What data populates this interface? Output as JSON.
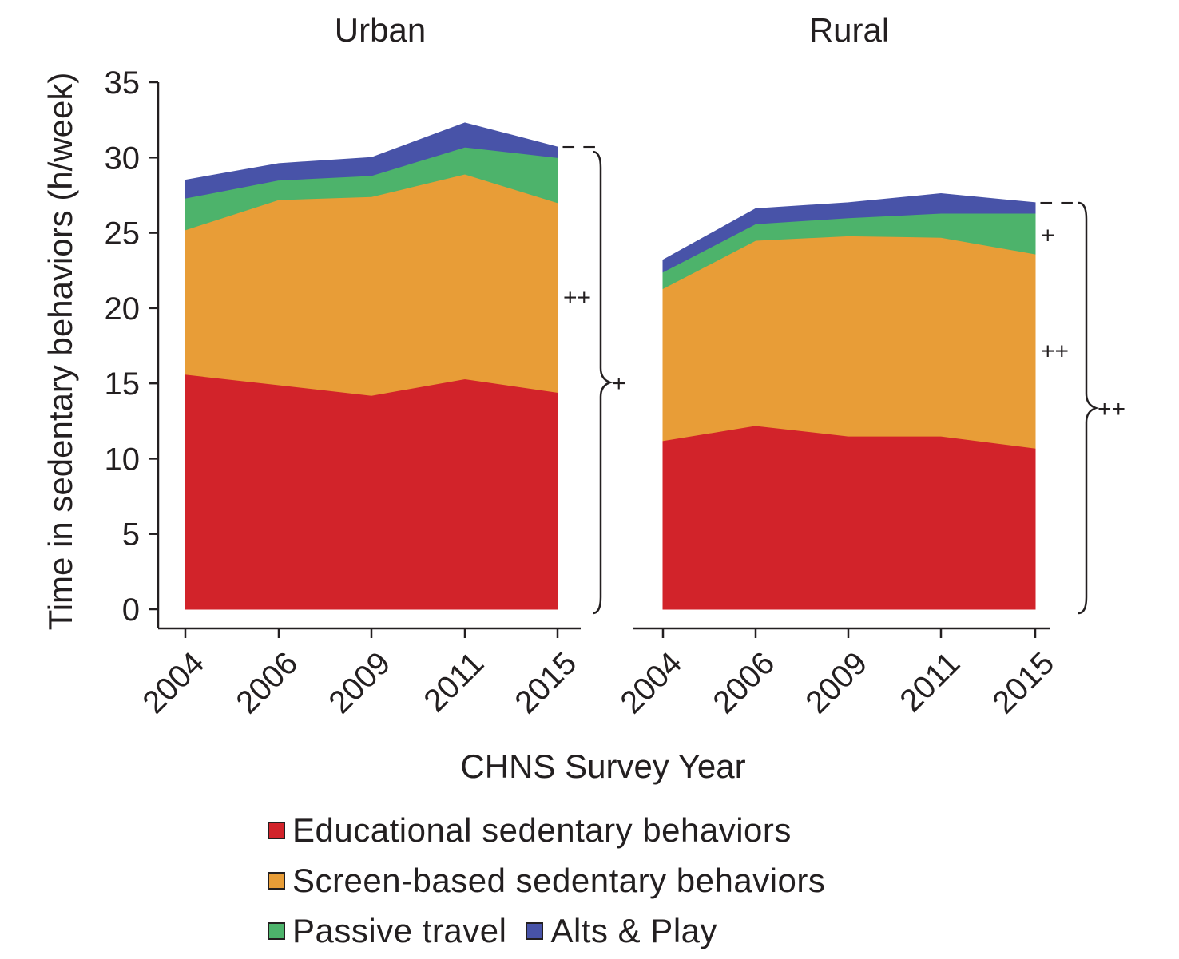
{
  "chart_data": {
    "type": "area",
    "stacked": true,
    "xlabel": "CHNS Survey Year",
    "ylabel": "Time in sedentary behaviors (h/week)",
    "ylim": [
      0,
      35
    ],
    "yticks": [
      0,
      5,
      10,
      15,
      20,
      25,
      30,
      35
    ],
    "categories": [
      "2004",
      "2006",
      "2009",
      "2011",
      "2015"
    ],
    "legend_position": "bottom",
    "series_colors": {
      "Educational sedentary behaviors": "#d2232a",
      "Screen-based sedentary behaviors": "#e89d37",
      "Passive travel": "#4db36b",
      "Alts & Play": "#4853a8"
    },
    "panels": [
      {
        "title": "Urban",
        "series": [
          {
            "name": "Educational sedentary behaviors",
            "values": [
              15.6,
              14.9,
              14.2,
              15.3,
              14.4
            ]
          },
          {
            "name": "Screen-based sedentary behaviors",
            "values": [
              9.6,
              12.3,
              13.2,
              13.6,
              12.6
            ]
          },
          {
            "name": "Passive travel",
            "values": [
              2.1,
              1.3,
              1.4,
              1.8,
              3.0
            ]
          },
          {
            "name": "Alts & Play",
            "values": [
              1.2,
              1.1,
              1.2,
              1.6,
              0.7
            ]
          }
        ],
        "annotations": {
          "alts_play": "− −",
          "screen": "++",
          "total": "+"
        }
      },
      {
        "title": "Rural",
        "series": [
          {
            "name": "Educational sedentary behaviors",
            "values": [
              11.2,
              12.2,
              11.5,
              11.5,
              10.7
            ]
          },
          {
            "name": "Screen-based sedentary behaviors",
            "values": [
              10.1,
              12.3,
              13.3,
              13.2,
              12.9
            ]
          },
          {
            "name": "Passive travel",
            "values": [
              1.1,
              1.1,
              1.2,
              1.6,
              2.7
            ]
          },
          {
            "name": "Alts & Play",
            "values": [
              0.8,
              1.0,
              1.0,
              1.3,
              0.7
            ]
          }
        ],
        "annotations": {
          "alts_play": "− −",
          "passive": "+",
          "screen": "++",
          "total": "++"
        }
      }
    ]
  },
  "legend": {
    "items": [
      {
        "label": "Educational sedentary behaviors",
        "color": "#d2232a"
      },
      {
        "label": "Screen-based sedentary behaviors",
        "color": "#e89d37"
      },
      {
        "label": "Passive travel",
        "color": "#4db36b"
      },
      {
        "label": "Alts & Play",
        "color": "#4853a8"
      }
    ]
  }
}
